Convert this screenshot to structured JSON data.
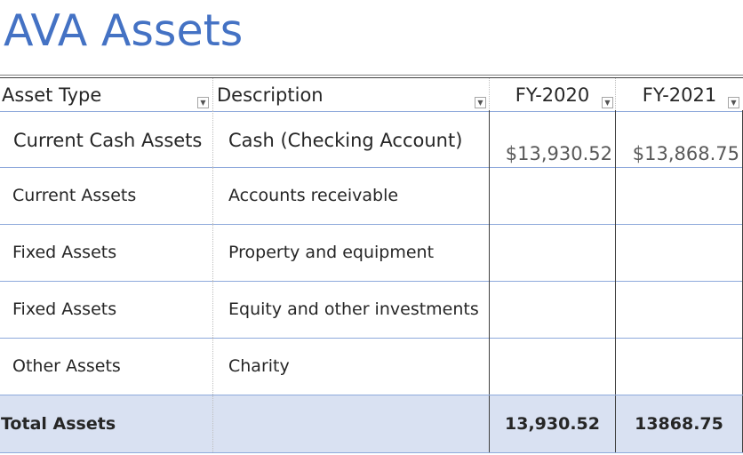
{
  "title": "AVA Assets",
  "headers": {
    "asset_type": "Asset Type",
    "description": "Description",
    "fy2020": "FY-2020",
    "fy2021": "FY-2021",
    "filter_icon": "dropdown-arrow-icon"
  },
  "rows": [
    {
      "asset_type": "Current Cash Assets",
      "description": "Cash (Checking Account)",
      "fy2020": "$13,930.52",
      "fy2021": "$13,868.75"
    },
    {
      "asset_type": "Current Assets",
      "description": "Accounts receivable",
      "fy2020": "",
      "fy2021": ""
    },
    {
      "asset_type": "Fixed Assets",
      "description": "Property and equipment",
      "fy2020": "",
      "fy2021": ""
    },
    {
      "asset_type": "Fixed Assets",
      "description": "Equity and other investments",
      "fy2020": "",
      "fy2021": ""
    },
    {
      "asset_type": "Other Assets",
      "description": "Charity",
      "fy2020": "",
      "fy2021": ""
    }
  ],
  "total": {
    "label": "Total Assets",
    "description": "",
    "fy2020": "13,930.52",
    "fy2021": "13868.75"
  },
  "colors": {
    "title": "#4472c4",
    "total_band": "#d9e1f2",
    "row_rule": "#8ea9db"
  }
}
